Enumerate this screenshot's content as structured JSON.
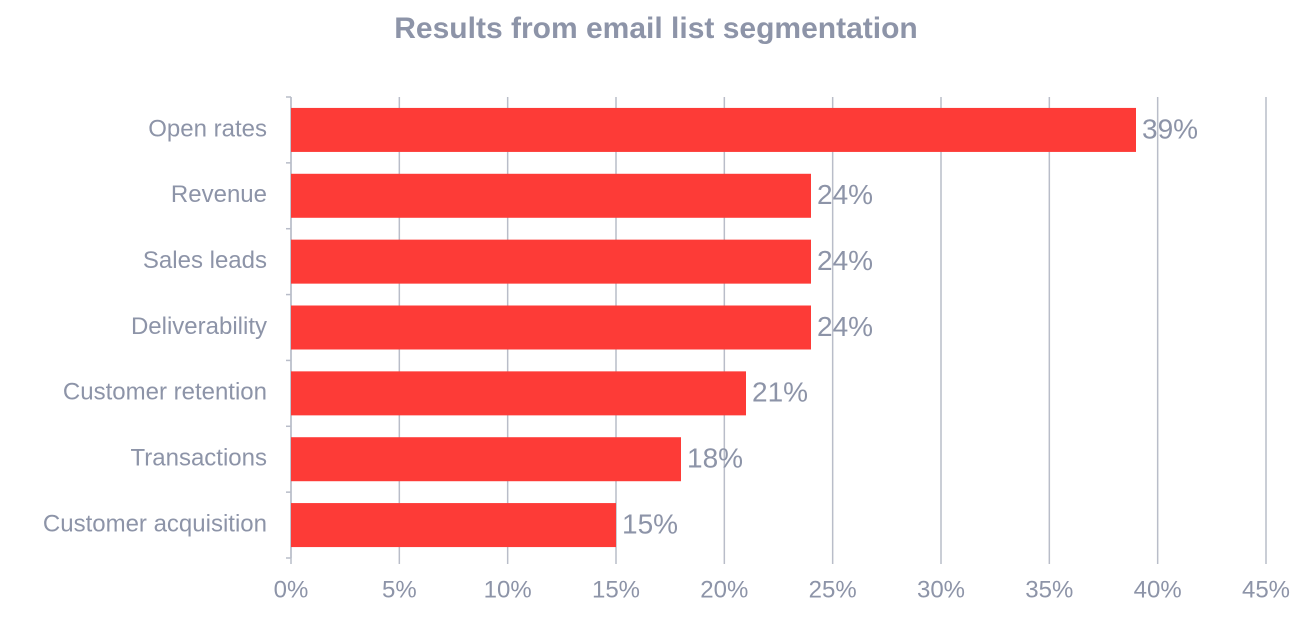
{
  "chart_data": {
    "type": "bar",
    "orientation": "horizontal",
    "title": "Results from email list segmentation",
    "categories": [
      "Open rates",
      "Revenue",
      "Sales leads",
      "Deliverability",
      "Customer retention",
      "Transactions",
      "Customer acquisition"
    ],
    "values": [
      39,
      24,
      24,
      24,
      21,
      18,
      15
    ],
    "value_labels": [
      "39%",
      "24%",
      "24%",
      "24%",
      "21%",
      "18%",
      "15%"
    ],
    "color": "#fd3b37",
    "xlim": [
      0,
      45
    ],
    "xticks": [
      {
        "value": 0,
        "label": "0%"
      },
      {
        "value": 5,
        "label": "5%"
      },
      {
        "value": 10,
        "label": "10%"
      },
      {
        "value": 15,
        "label": "15%"
      },
      {
        "value": 20,
        "label": "20%"
      },
      {
        "value": 25,
        "label": "25%"
      },
      {
        "value": 30,
        "label": "30%"
      },
      {
        "value": 35,
        "label": "35%"
      },
      {
        "value": 40,
        "label": "40%"
      },
      {
        "value": 45,
        "label": "45%"
      }
    ],
    "grid": true
  }
}
